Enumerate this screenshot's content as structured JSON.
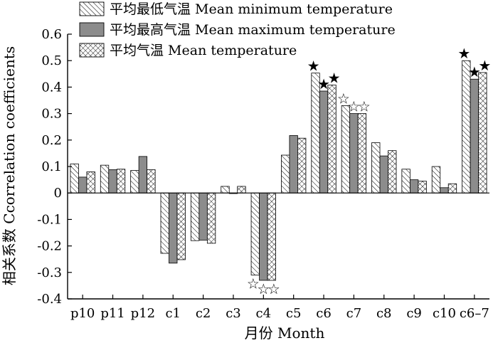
{
  "chart_data": {
    "type": "bar",
    "xlabel": "月份 Month",
    "ylabel": "相关系数 Ccorrelation coefficients",
    "ylim": [
      -0.4,
      0.6
    ],
    "yticks": [
      -0.4,
      -0.3,
      -0.2,
      -0.1,
      0,
      0.1,
      0.2,
      0.3,
      0.4,
      0.5,
      0.6
    ],
    "ytick_labels": [
      "-0.4",
      "-0.3",
      "-0.2",
      "-0.1",
      "0",
      "0.1",
      "0.2",
      "0.3",
      "0.4",
      "0.5",
      "0.6"
    ],
    "categories": [
      "p10",
      "p11",
      "p12",
      "c1",
      "c2",
      "c3",
      "c4",
      "c5",
      "c6",
      "c7",
      "c8",
      "c9",
      "c10",
      "c6–7"
    ],
    "legend_position": "top-left",
    "series": [
      {
        "name": "平均最低气温 Mean minimum temperature",
        "pattern": "diagonal-hatch",
        "values": [
          0.11,
          0.105,
          0.085,
          -0.228,
          -0.18,
          0.025,
          -0.31,
          0.143,
          0.453,
          0.33,
          0.19,
          0.09,
          0.1,
          0.5
        ],
        "markers": [
          null,
          null,
          null,
          null,
          null,
          null,
          "hollow-star",
          null,
          "solid-star",
          "hollow-star",
          null,
          null,
          null,
          "solid-star"
        ]
      },
      {
        "name": "平均最高气温 Mean maximum temperature",
        "pattern": "solid-gray",
        "color": "#8c8c8c",
        "values": [
          0.06,
          0.088,
          0.138,
          -0.265,
          -0.178,
          0.0,
          -0.33,
          0.217,
          0.385,
          0.3,
          0.14,
          0.05,
          0.02,
          0.43
        ],
        "markers": [
          null,
          null,
          null,
          null,
          null,
          null,
          "hollow-star",
          null,
          "solid-star",
          "hollow-star",
          null,
          null,
          null,
          "solid-star"
        ]
      },
      {
        "name": "平均气温 Mean temperature",
        "pattern": "cross-hatch",
        "values": [
          0.08,
          0.09,
          0.088,
          -0.252,
          -0.19,
          0.025,
          -0.33,
          0.207,
          0.408,
          0.3,
          0.16,
          0.045,
          0.035,
          0.455
        ],
        "markers": [
          null,
          null,
          null,
          null,
          null,
          null,
          "hollow-star",
          null,
          "solid-star",
          "hollow-star",
          null,
          null,
          null,
          "solid-star"
        ]
      }
    ]
  }
}
